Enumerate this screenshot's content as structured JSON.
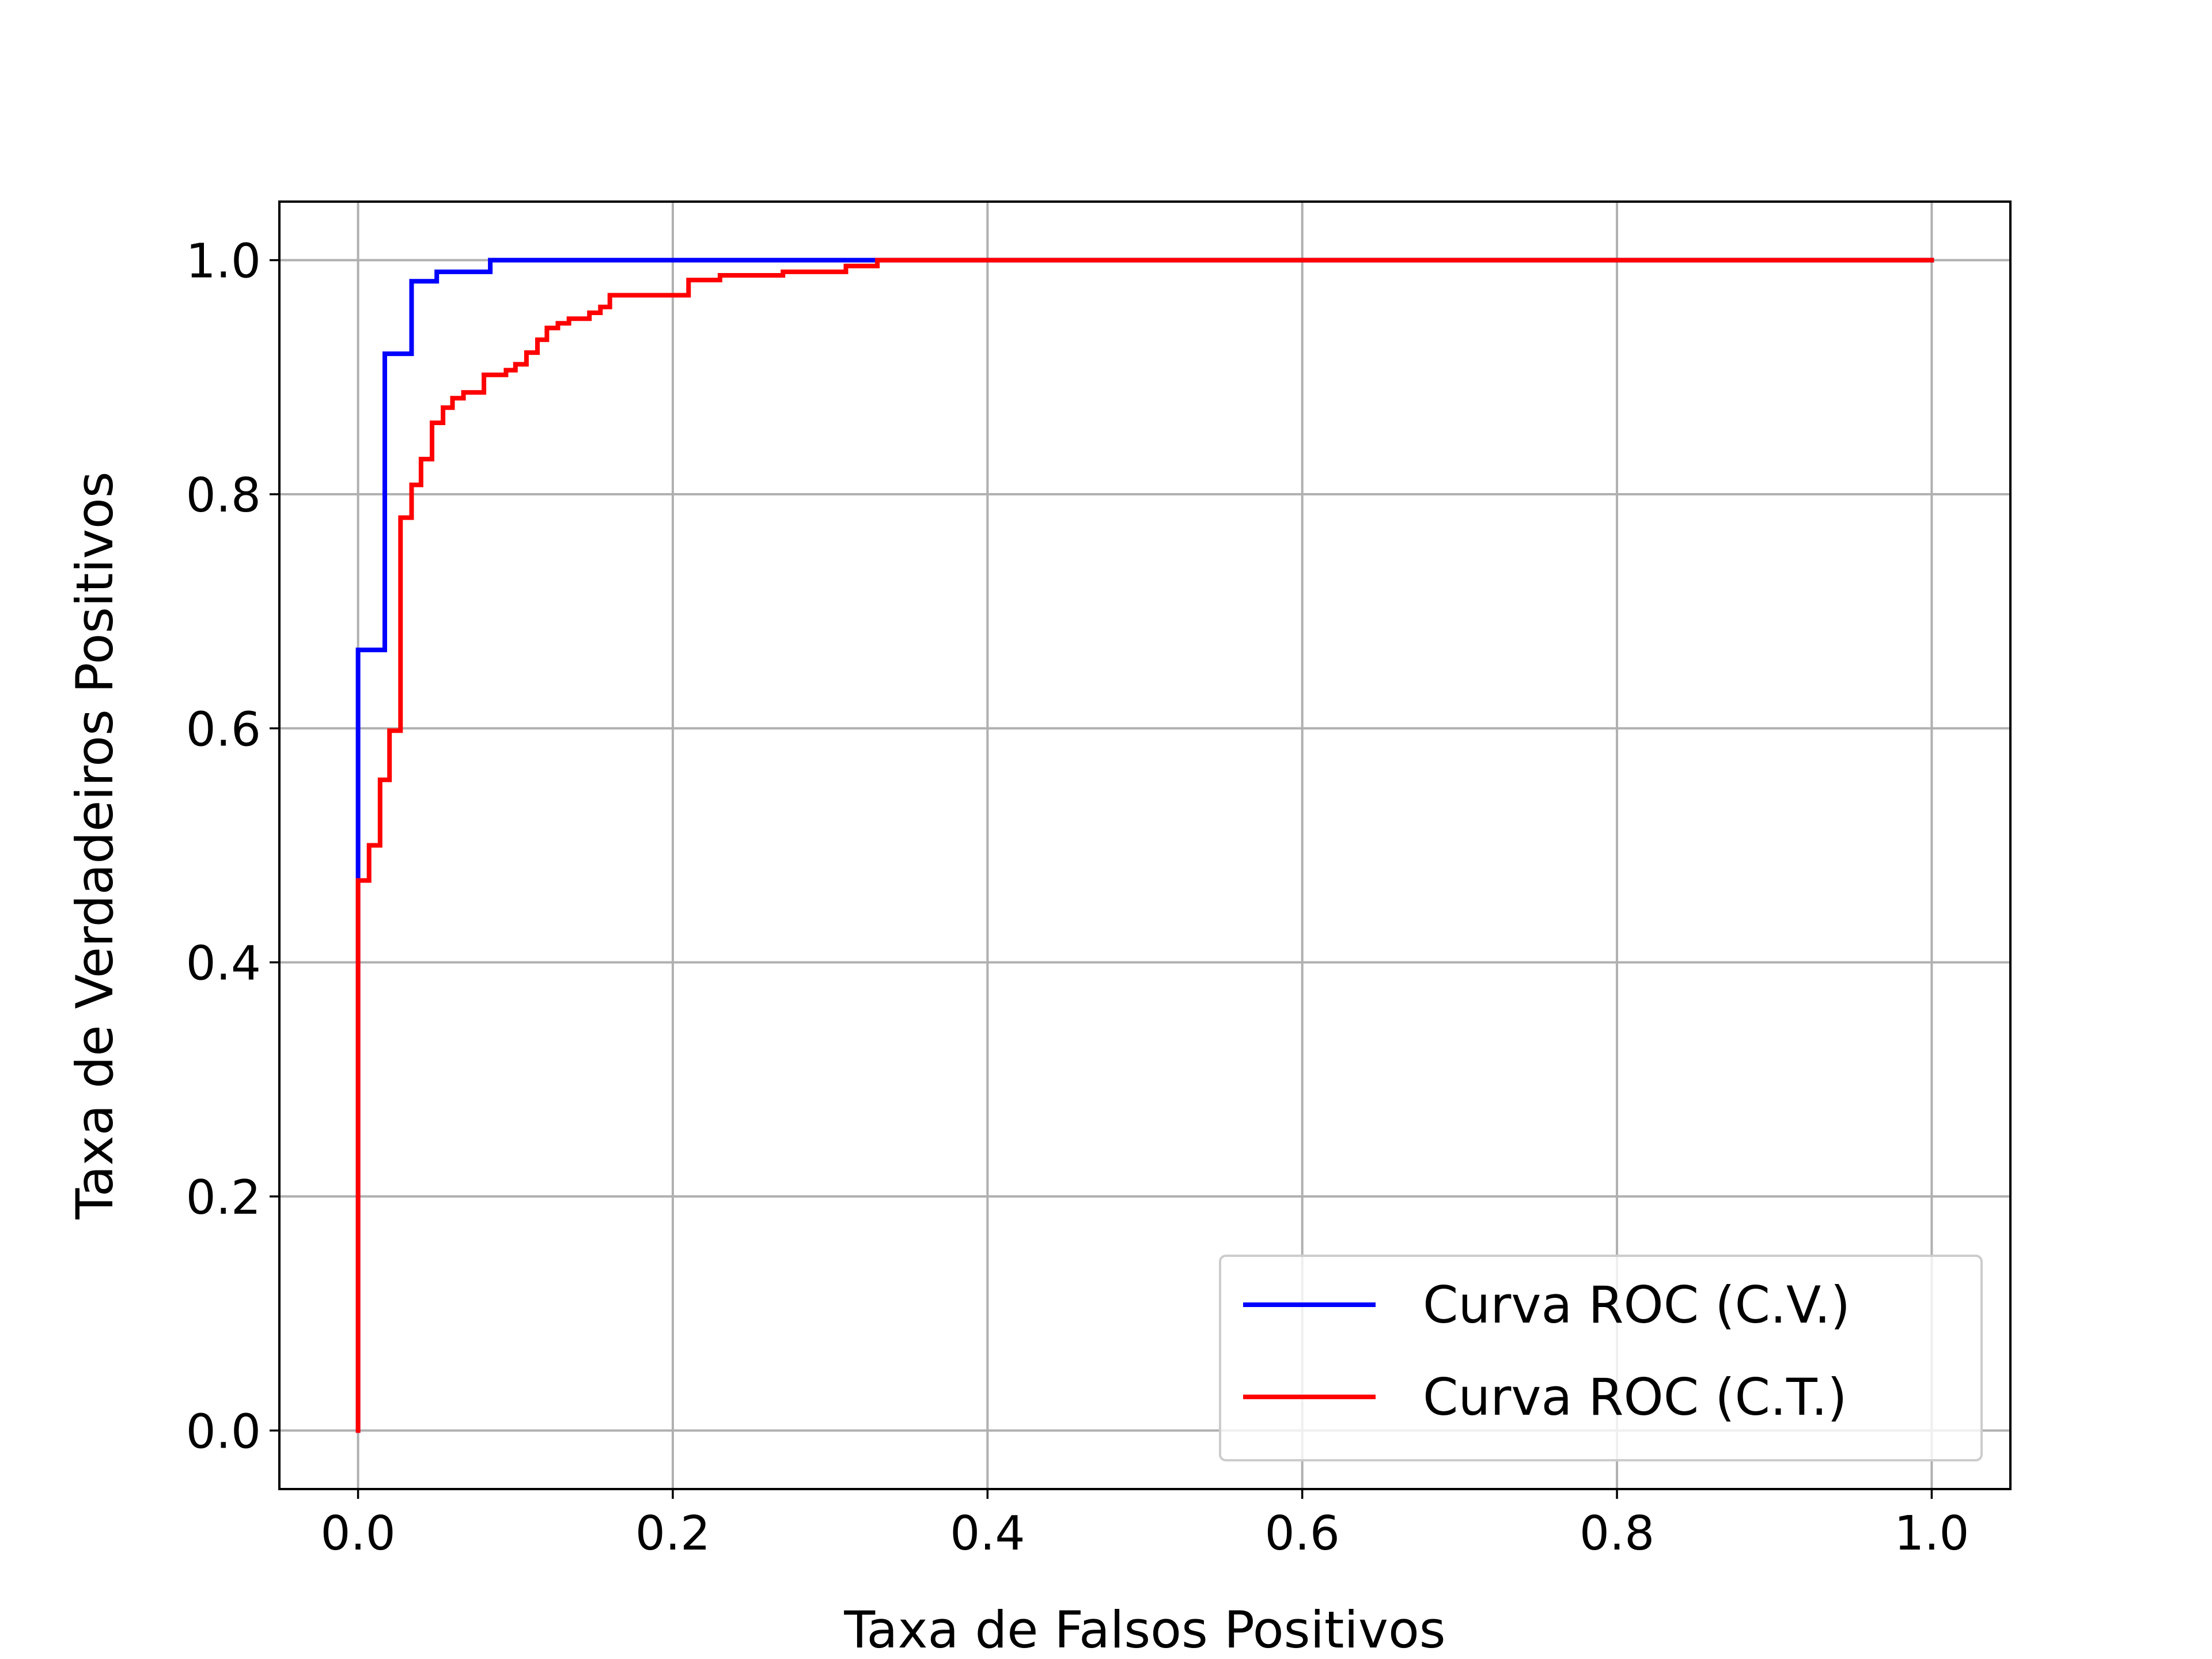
{
  "chart_data": {
    "type": "line",
    "title": "",
    "xlabel": "Taxa de Falsos Positivos",
    "ylabel": "Taxa de Verdadeiros Positivos",
    "xlim": [
      -0.05,
      1.05
    ],
    "ylim": [
      -0.05,
      1.05
    ],
    "xticks": [
      0.0,
      0.2,
      0.4,
      0.6,
      0.8,
      1.0
    ],
    "xtick_labels": [
      "0.0",
      "0.2",
      "0.4",
      "0.6",
      "0.8",
      "1.0"
    ],
    "yticks": [
      0.0,
      0.2,
      0.4,
      0.6,
      0.8,
      1.0
    ],
    "ytick_labels": [
      "0.0",
      "0.2",
      "0.4",
      "0.6",
      "0.8",
      "1.0"
    ],
    "grid": true,
    "legend_position": "lower-right",
    "series": [
      {
        "name": "Curva ROC (C.V.)",
        "color": "#0000ff",
        "x": [
          0.0,
          0.0,
          0.0,
          0.017,
          0.017,
          0.034,
          0.034,
          0.05,
          0.05,
          0.084,
          0.084,
          0.33,
          1.0
        ],
        "y": [
          0.0,
          0.48,
          0.667,
          0.667,
          0.92,
          0.92,
          0.982,
          0.982,
          0.99,
          0.99,
          1.0,
          1.0,
          1.0
        ]
      },
      {
        "name": "Curva ROC (C.T.)",
        "color": "#ff0000",
        "x": [
          0.0,
          0.0,
          0.007,
          0.007,
          0.014,
          0.014,
          0.02,
          0.02,
          0.027,
          0.027,
          0.034,
          0.034,
          0.04,
          0.04,
          0.047,
          0.047,
          0.054,
          0.054,
          0.06,
          0.06,
          0.067,
          0.067,
          0.08,
          0.08,
          0.094,
          0.094,
          0.1,
          0.1,
          0.107,
          0.107,
          0.114,
          0.114,
          0.12,
          0.12,
          0.127,
          0.127,
          0.134,
          0.134,
          0.147,
          0.147,
          0.154,
          0.154,
          0.16,
          0.16,
          0.167,
          0.167,
          0.21,
          0.21,
          0.23,
          0.23,
          0.27,
          0.27,
          0.31,
          0.31,
          0.33,
          0.33,
          1.0
        ],
        "y": [
          0.0,
          0.47,
          0.47,
          0.5,
          0.5,
          0.556,
          0.556,
          0.598,
          0.598,
          0.78,
          0.78,
          0.808,
          0.808,
          0.83,
          0.83,
          0.861,
          0.861,
          0.874,
          0.874,
          0.882,
          0.882,
          0.887,
          0.887,
          0.902,
          0.902,
          0.906,
          0.906,
          0.911,
          0.911,
          0.921,
          0.921,
          0.932,
          0.932,
          0.942,
          0.942,
          0.946,
          0.946,
          0.95,
          0.95,
          0.955,
          0.955,
          0.96,
          0.96,
          0.97,
          0.97,
          0.97,
          0.97,
          0.983,
          0.983,
          0.987,
          0.987,
          0.99,
          0.99,
          0.995,
          0.995,
          1.0,
          1.0
        ]
      }
    ]
  }
}
